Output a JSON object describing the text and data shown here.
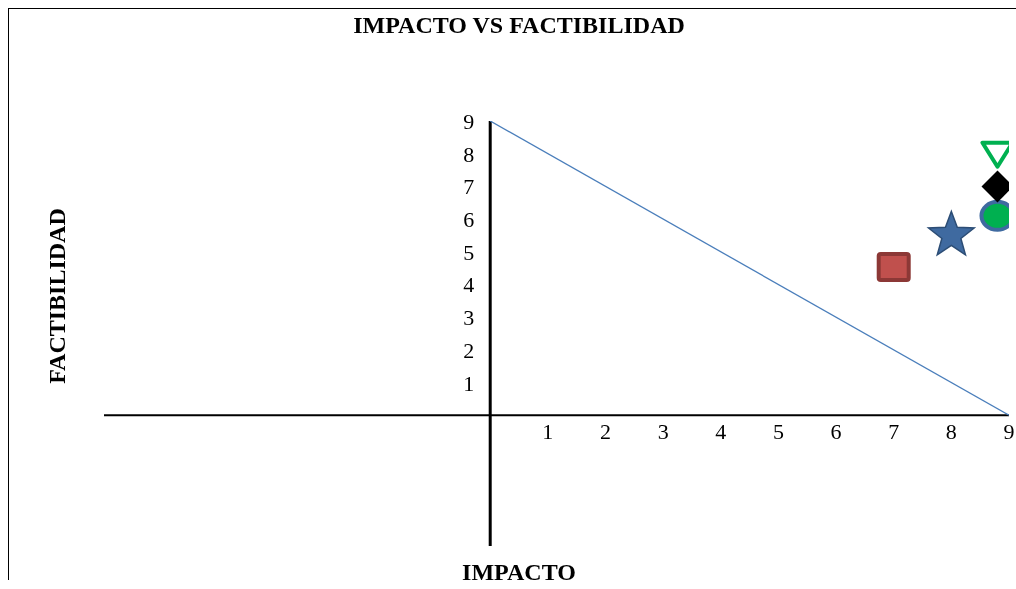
{
  "chart_data": {
    "type": "scatter",
    "title": "IMPACTO VS FACTIBILIDAD",
    "xlabel": "IMPACTO",
    "ylabel": "FACTIBILIDAD",
    "xlim": [
      -6.7,
      9
    ],
    "ylim": [
      -4,
      9
    ],
    "xticks": [
      1,
      2,
      3,
      4,
      5,
      6,
      7,
      8,
      9
    ],
    "yticks": [
      1,
      2,
      3,
      4,
      5,
      6,
      7,
      8,
      9
    ],
    "grid": false,
    "legend": false,
    "series": [
      {
        "type": "line",
        "x": [
          0,
          9
        ],
        "values": [
          9,
          0
        ],
        "color": "#4a7ebb",
        "marker": "none"
      },
      {
        "x": [
          7
        ],
        "values": [
          4.5
        ],
        "color": "#c0504d",
        "marker": "square"
      },
      {
        "x": [
          8
        ],
        "values": [
          5.5
        ],
        "color": "#3f6aa0",
        "marker": "star"
      },
      {
        "x": [
          8.8
        ],
        "values": [
          6.1
        ],
        "color": "#00b050",
        "marker": "circle"
      },
      {
        "x": [
          8.8
        ],
        "values": [
          7
        ],
        "color": "#000000",
        "marker": "diamond"
      },
      {
        "x": [
          8.8
        ],
        "values": [
          8
        ],
        "color": "#00b050",
        "marker": "triangle"
      }
    ]
  }
}
